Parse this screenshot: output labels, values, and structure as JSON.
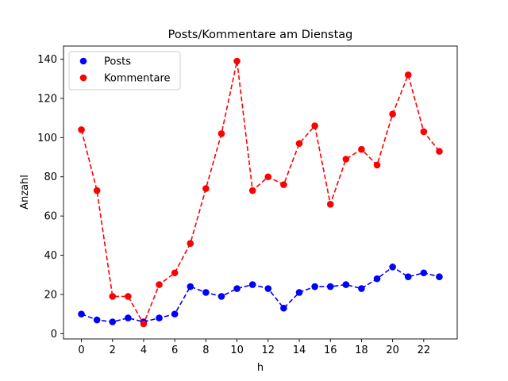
{
  "chart_data": {
    "type": "line",
    "title": "Posts/Kommentare am Dienstag",
    "xlabel": "h",
    "ylabel": "Anzahl",
    "xlim": [
      -1.15,
      24.15
    ],
    "ylim": [
      -2.7,
      146.7
    ],
    "xticks": [
      0,
      2,
      4,
      6,
      8,
      10,
      12,
      14,
      16,
      18,
      20,
      22
    ],
    "yticks": [
      0,
      20,
      40,
      60,
      80,
      100,
      120,
      140
    ],
    "grid": false,
    "legend_position": "upper-left",
    "x": [
      0,
      1,
      2,
      3,
      4,
      5,
      6,
      7,
      8,
      9,
      10,
      11,
      12,
      13,
      14,
      15,
      16,
      17,
      18,
      19,
      20,
      21,
      22,
      23
    ],
    "series": [
      {
        "name": "Posts",
        "color": "#0000ff",
        "values": [
          10,
          7,
          6,
          8,
          6,
          8,
          10,
          24,
          21,
          19,
          23,
          25,
          23,
          13,
          21,
          24,
          24,
          25,
          23,
          28,
          34,
          29,
          31,
          29
        ]
      },
      {
        "name": "Kommentare",
        "color": "#ff0000",
        "values": [
          104,
          73,
          19,
          19,
          5,
          25,
          31,
          46,
          74,
          102,
          139,
          73,
          80,
          76,
          97,
          106,
          66,
          89,
          94,
          86,
          112,
          132,
          103,
          93
        ]
      }
    ]
  }
}
